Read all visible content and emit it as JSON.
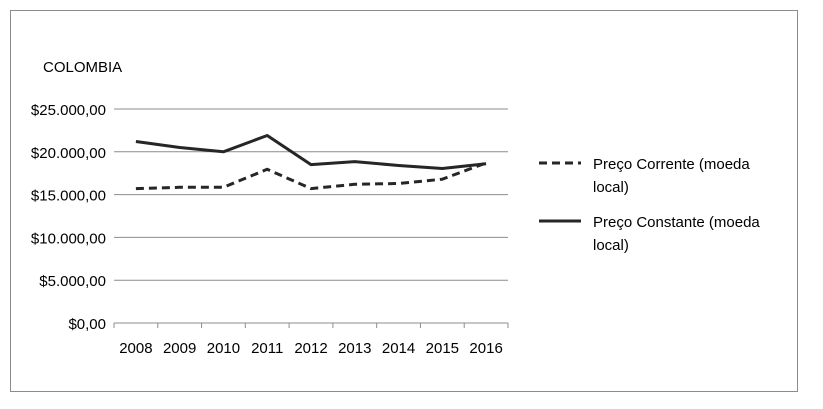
{
  "chart_data": {
    "type": "line",
    "title": "COLOMBIA",
    "categories": [
      "2008",
      "2009",
      "2010",
      "2011",
      "2012",
      "2013",
      "2014",
      "2015",
      "2016"
    ],
    "series": [
      {
        "name": "Preço Corrente (moeda local)",
        "values": [
          15700,
          15850,
          15850,
          17950,
          15700,
          16200,
          16300,
          16800,
          18700
        ],
        "style": "dashed",
        "legend_lines": [
          "Preço Corrente (moeda",
          "local)"
        ]
      },
      {
        "name": "Preço Constante (moeda local)",
        "values": [
          21200,
          20500,
          20000,
          21900,
          18500,
          18850,
          18400,
          18050,
          18600
        ],
        "style": "solid",
        "legend_lines": [
          "Preço Constante (moeda",
          "local)"
        ]
      }
    ],
    "y_ticks": [
      "$0,00",
      "$5.000,00",
      "$10.000,00",
      "$15.000,00",
      "$20.000,00",
      "$25.000,00"
    ],
    "y_tick_values": [
      0,
      5000,
      10000,
      15000,
      20000,
      25000
    ],
    "ylim": [
      0,
      25000
    ],
    "grid": true,
    "legend_position": "right",
    "colors": {
      "series": "#262626",
      "grid": "#8c8c8c",
      "axis": "#8c8c8c"
    }
  }
}
